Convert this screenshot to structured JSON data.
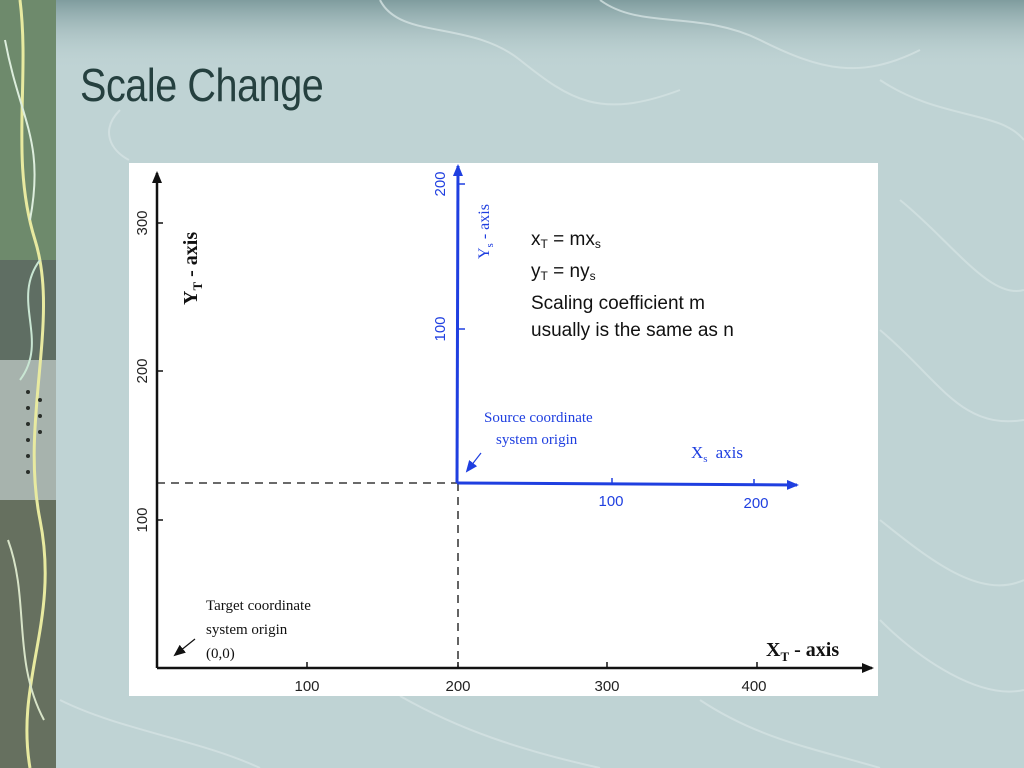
{
  "slide": {
    "title": "Scale Change"
  },
  "diagram": {
    "target_axis": {
      "y_label_main": "Y",
      "y_label_sub": "T",
      "y_label_rest": " - axis",
      "x_label_main": "X",
      "x_label_sub": "T",
      "x_label_rest": " - axis",
      "x_ticks": [
        "100",
        "200",
        "300",
        "400"
      ],
      "y_ticks": [
        "100",
        "200",
        "300"
      ]
    },
    "source_axis": {
      "y_label_main": "Y",
      "y_label_sub": "s",
      "y_label_rest": " - axis",
      "x_label_main": "X",
      "x_label_sub": "s",
      "x_label_rest": "axis",
      "x_ticks": [
        "100",
        "200"
      ],
      "y_ticks": [
        "100",
        "200"
      ]
    },
    "source_origin_label": [
      "Source coordinate",
      "system origin"
    ],
    "target_origin_label": [
      "Target coordinate",
      "system origin",
      "(0,0)"
    ],
    "colors": {
      "target": "#111111",
      "source": "#1f3fe0"
    }
  },
  "equations": {
    "line1_var": "x",
    "line1_var_sub": "T",
    "line1_eq": " = mx",
    "line1_eq_sub": "s",
    "line2_var": "y",
    "line2_var_sub": "T",
    "line2_eq": " = ny",
    "line2_eq_sub": "s",
    "note_line1": "Scaling coefficient m",
    "note_line2": "usually is the same as n"
  }
}
